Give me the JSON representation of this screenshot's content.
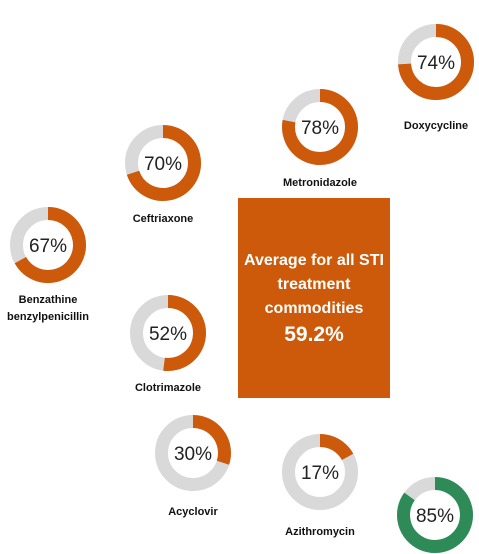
{
  "chart_data": {
    "type": "donut",
    "items": [
      {
        "name": "Doxycycline",
        "value": 74,
        "value_label": "74%",
        "color": "#cc5a0a"
      },
      {
        "name": "Metronidazole",
        "value": 78,
        "value_label": "78%",
        "color": "#cc5a0a"
      },
      {
        "name": "Ceftriaxone",
        "value": 70,
        "value_label": "70%",
        "color": "#cc5a0a"
      },
      {
        "name": "Benzathine benzylpenicillin",
        "value": 67,
        "value_label": "67%",
        "color": "#cc5a0a"
      },
      {
        "name": "Clotrimazole",
        "value": 52,
        "value_label": "52%",
        "color": "#cc5a0a"
      },
      {
        "name": "Acyclovir",
        "value": 30,
        "value_label": "30%",
        "color": "#cc5a0a"
      },
      {
        "name": "Azithromycin",
        "value": 17,
        "value_label": "17%",
        "color": "#cc5a0a"
      },
      {
        "name": null,
        "value": 85,
        "value_label": "85%",
        "color": "#2e8b57"
      }
    ],
    "track_color": "#d9d9d9",
    "summary": {
      "label": "Average for all STI treatment commodities",
      "value": 59.2,
      "value_label": "59.2%",
      "color": "#cc5a0a"
    }
  }
}
